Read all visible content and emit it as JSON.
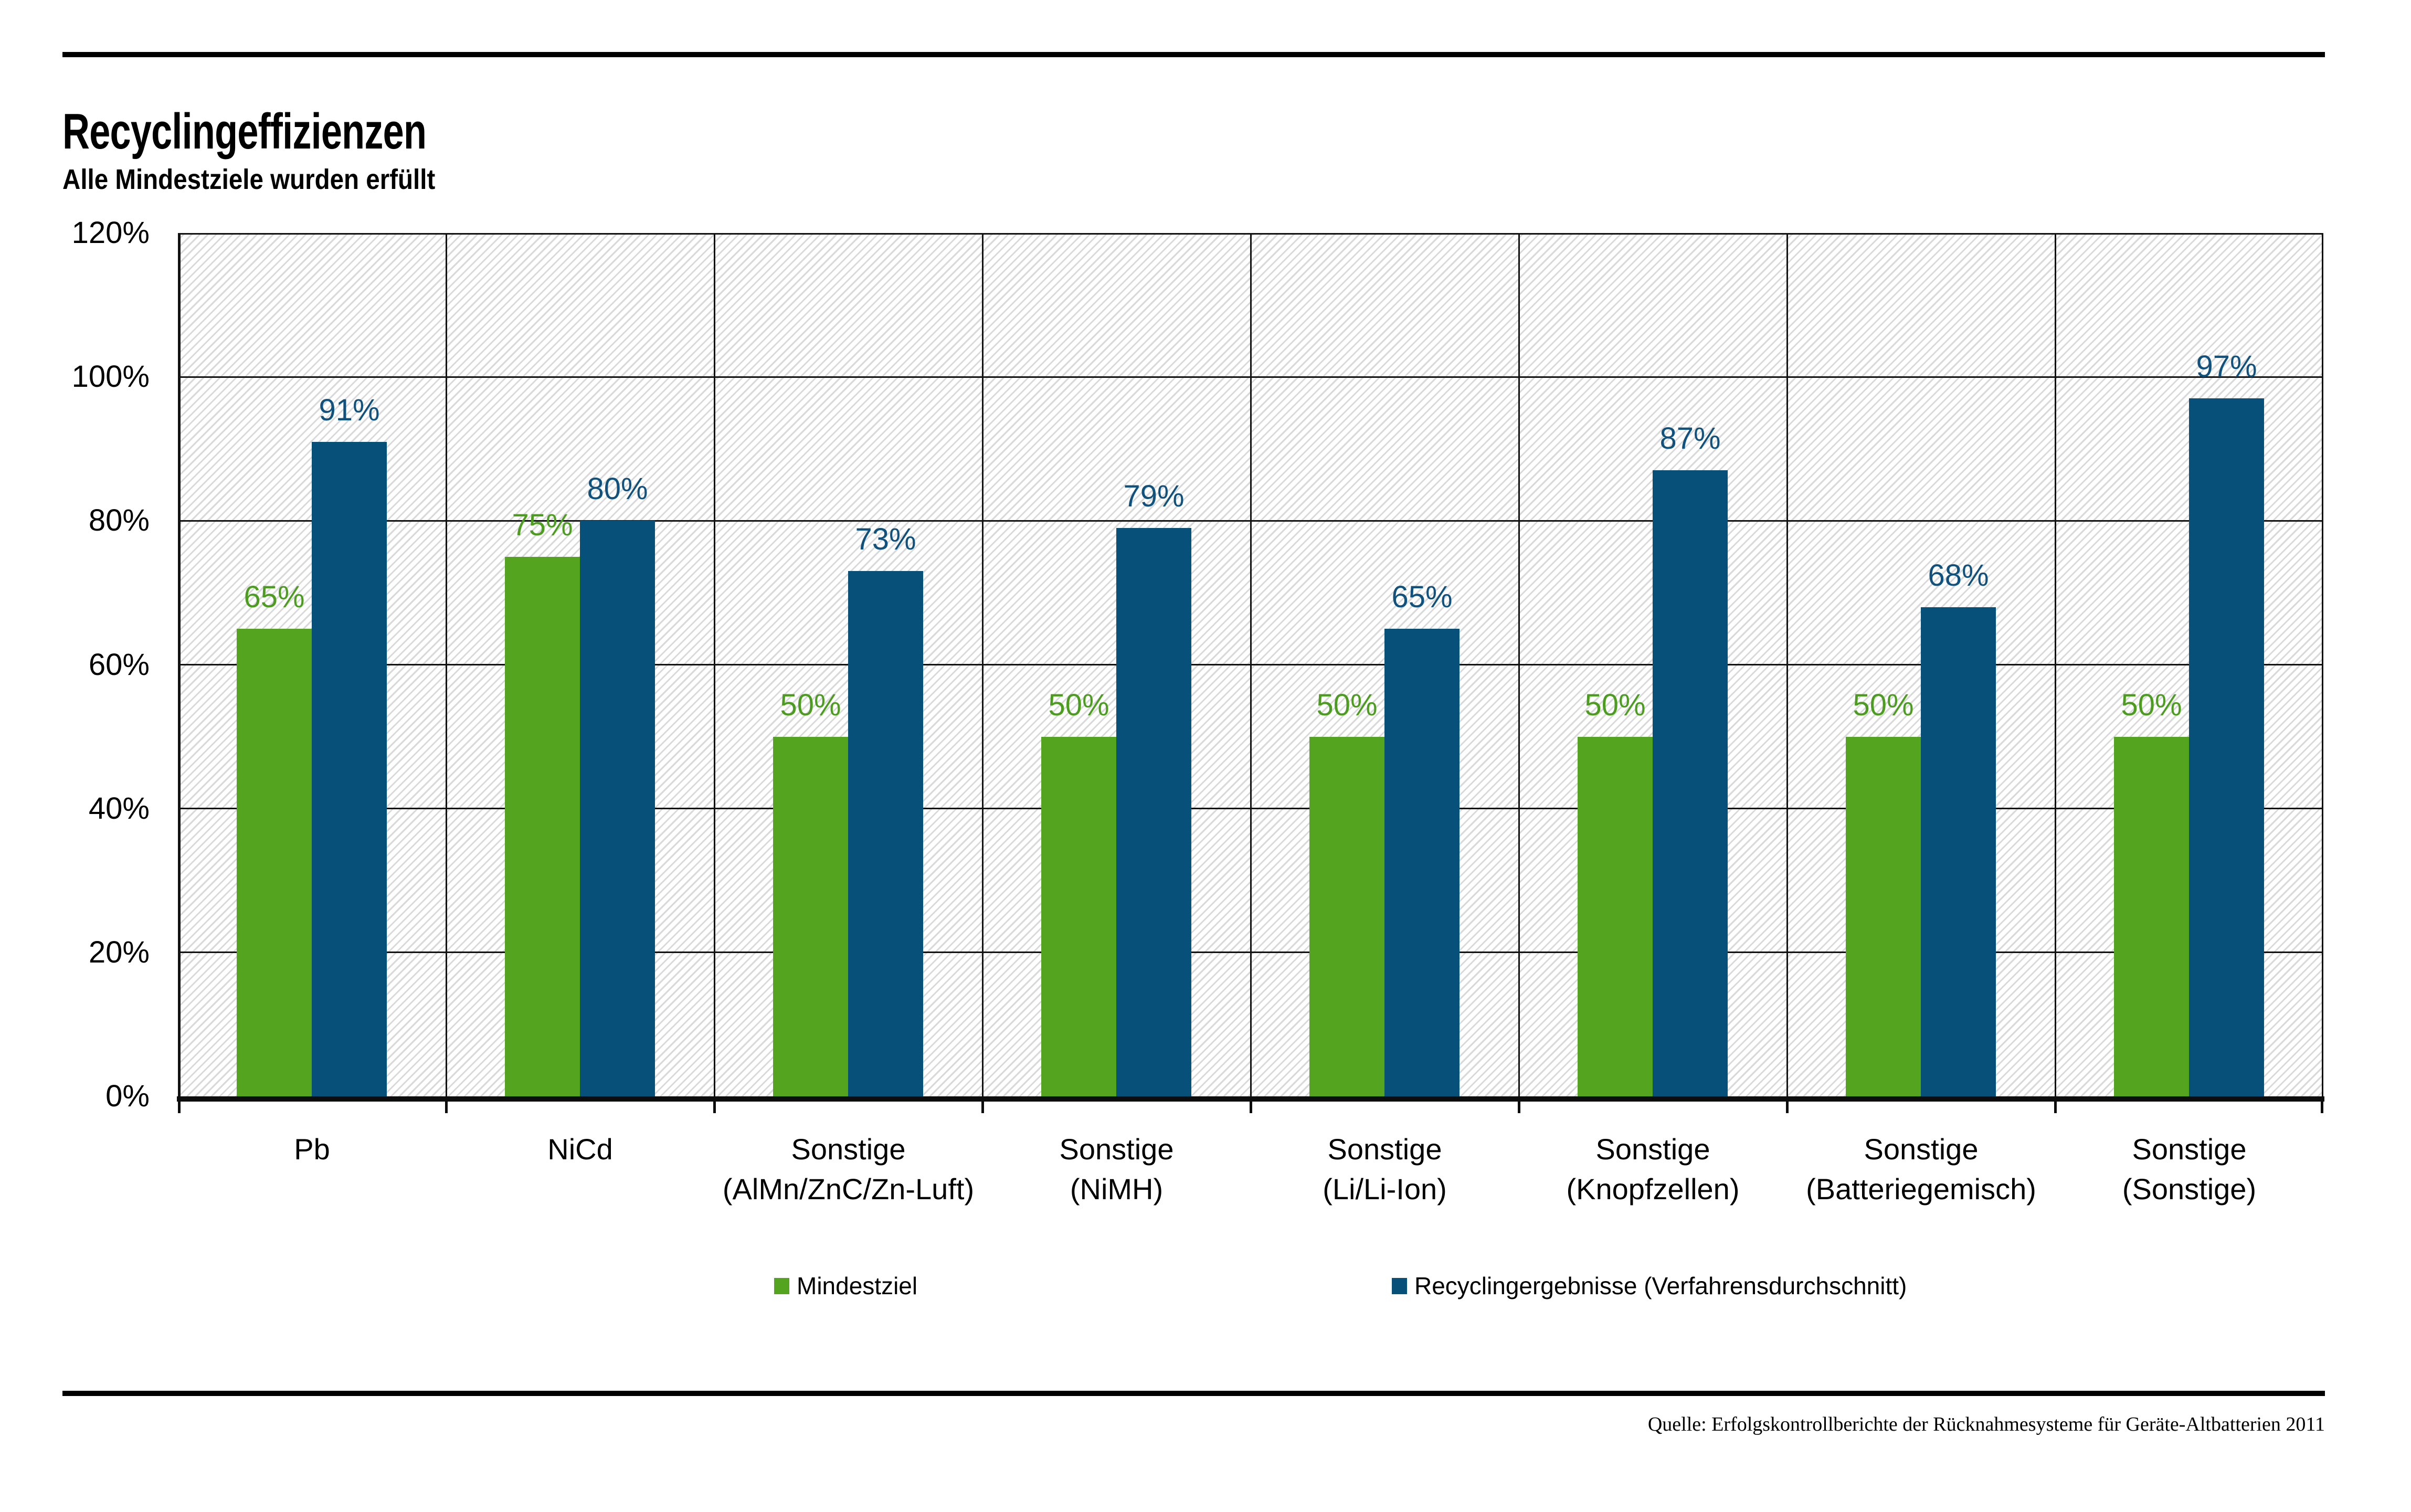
{
  "header": {
    "title": "Recyclingeffizienzen",
    "subtitle": "Alle Mindestziele wurden erfüllt"
  },
  "chart_data": {
    "type": "bar",
    "title": "Recyclingeffizienzen",
    "subtitle": "Alle Mindestziele wurden erfüllt",
    "categories": [
      {
        "line1": "Pb",
        "line2": ""
      },
      {
        "line1": "NiCd",
        "line2": ""
      },
      {
        "line1": "Sonstige",
        "line2": "(AlMn/ZnC/Zn-Luft)"
      },
      {
        "line1": "Sonstige",
        "line2": "(NiMH)"
      },
      {
        "line1": "Sonstige",
        "line2": "(Li/Li-Ion)"
      },
      {
        "line1": "Sonstige",
        "line2": "(Knopfzellen)"
      },
      {
        "line1": "Sonstige",
        "line2": "(Batteriegemisch)"
      },
      {
        "line1": "Sonstige",
        "line2": "(Sonstige)"
      }
    ],
    "series": [
      {
        "name": "Mindestziel",
        "color": "#54a41f",
        "label_color": "#4c9d1f",
        "values": [
          65,
          75,
          50,
          50,
          50,
          50,
          50,
          50
        ]
      },
      {
        "name": "Recyclingergebnisse (Verfahrensdurchschnitt)",
        "color": "#065079",
        "label_color": "#10527d",
        "values": [
          91,
          80,
          73,
          79,
          65,
          87,
          68,
          97
        ]
      }
    ],
    "value_suffix": "%",
    "y_ticks": [
      0,
      20,
      40,
      60,
      80,
      100,
      120
    ],
    "y_tick_suffix": "%",
    "ylim": [
      0,
      120
    ],
    "grid": true,
    "hatch_background": true,
    "legend_position": "bottom"
  },
  "legend": [
    {
      "label": "Mindestziel",
      "color": "#54a41f"
    },
    {
      "label": "Recyclingergebnisse (Verfahrensdurchschnitt)",
      "color": "#065079"
    }
  ],
  "footer": {
    "source": "Quelle: Erfolgskontrollberichte der Rücknahmesysteme für Geräte-Altbatterien 2011"
  }
}
